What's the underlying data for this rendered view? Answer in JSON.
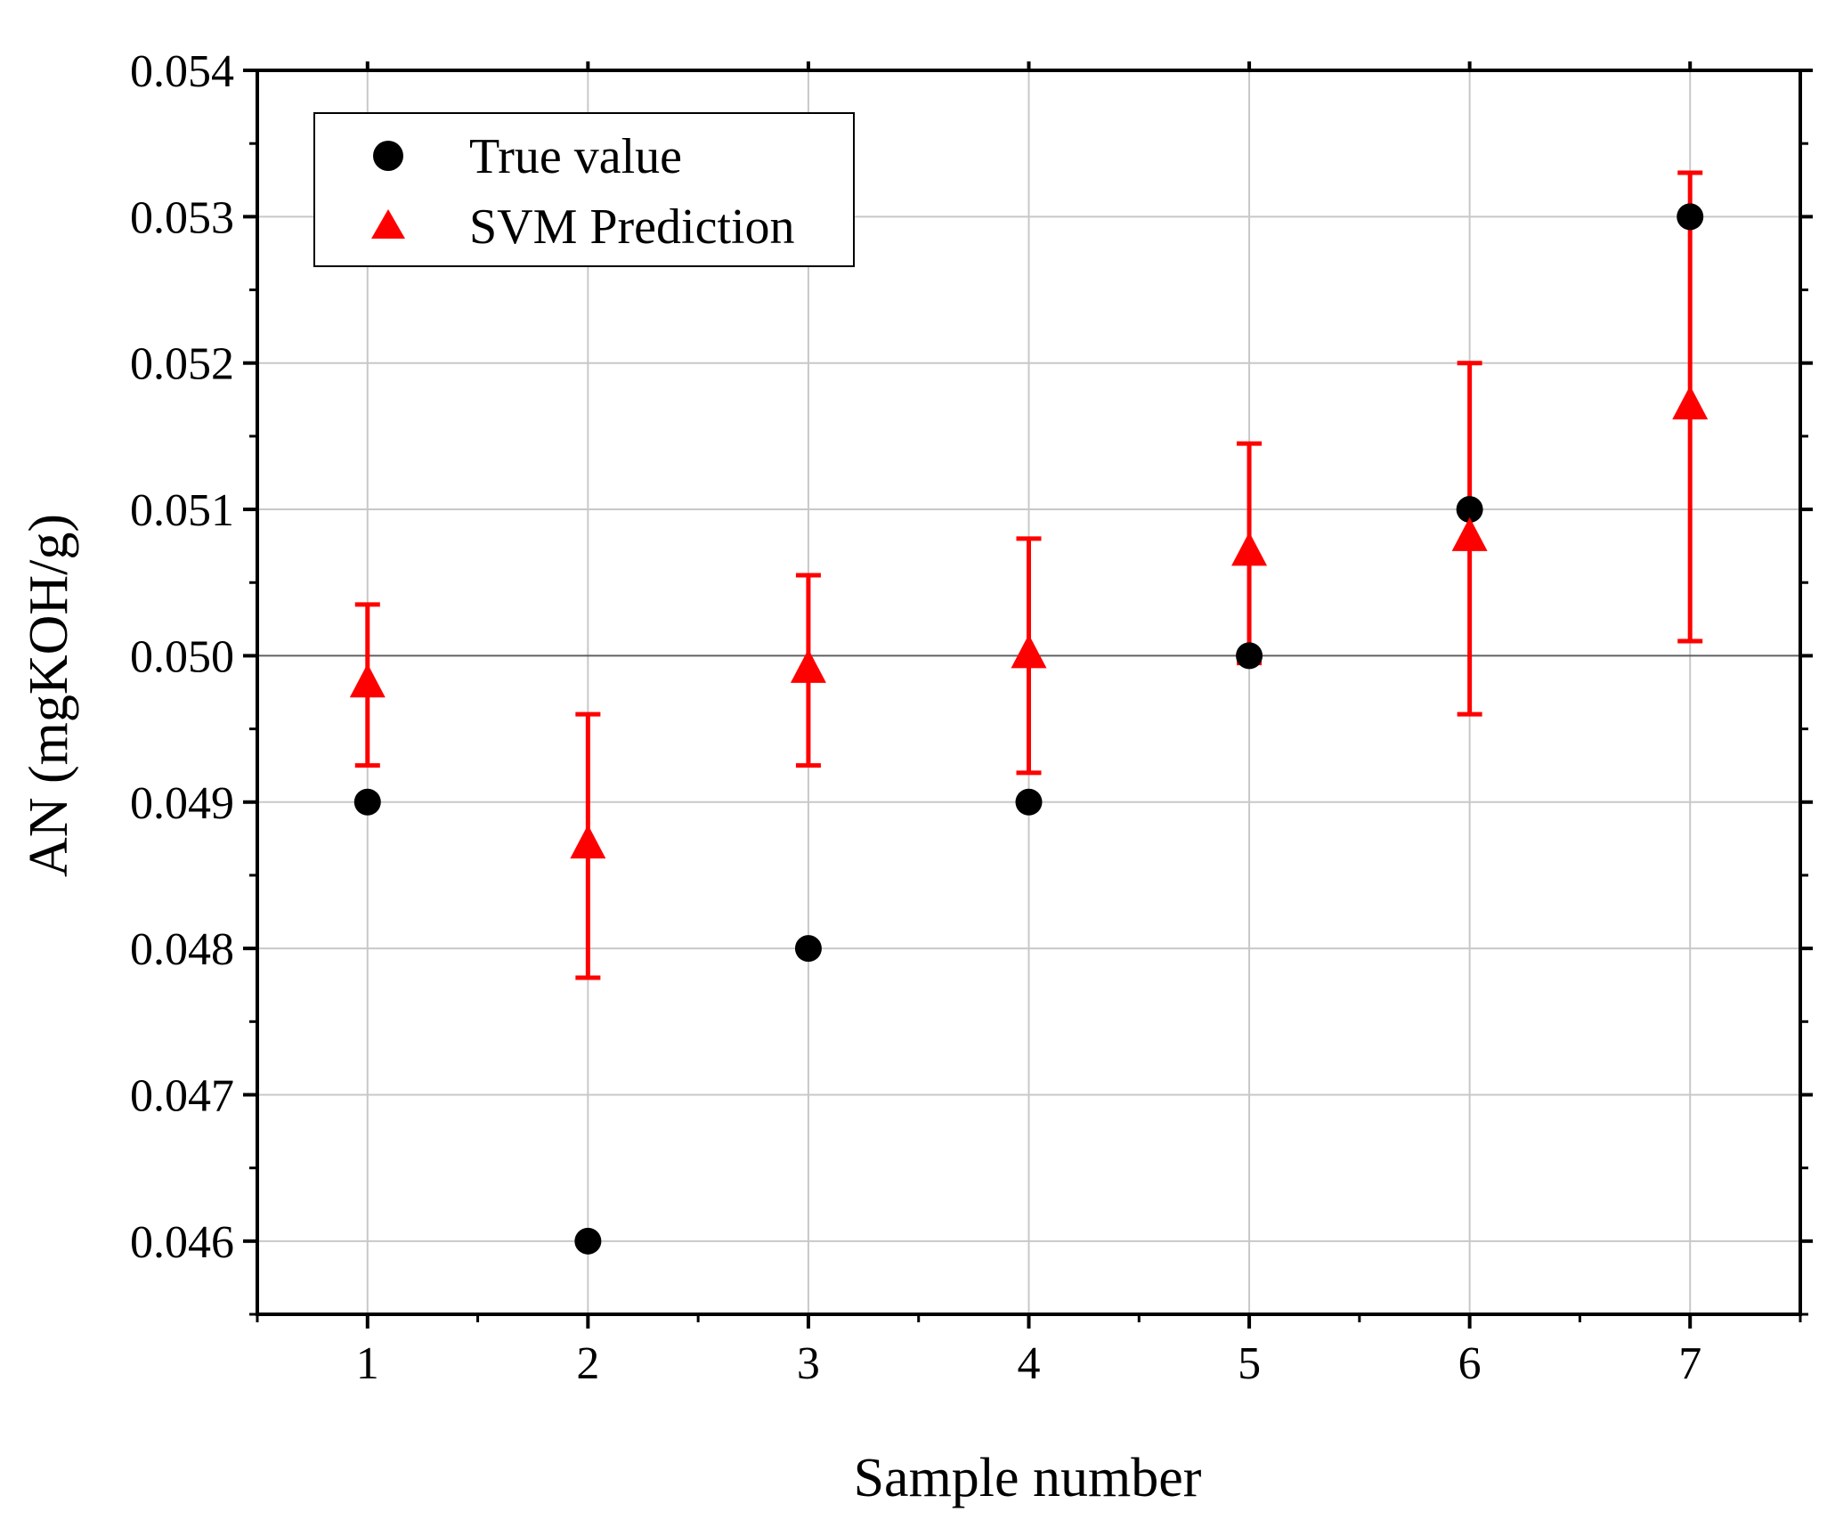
{
  "chart_data": {
    "type": "scatter",
    "title": "",
    "xlabel": "Sample number",
    "ylabel": "AN (mgKOH/g)",
    "xlim": [
      0.5,
      7.5
    ],
    "ylim": [
      0.0455,
      0.054
    ],
    "x_ticks": [
      1,
      2,
      3,
      4,
      5,
      6,
      7
    ],
    "x_tick_labels": [
      "1",
      "2",
      "3",
      "4",
      "5",
      "6",
      "7"
    ],
    "y_ticks": [
      0.046,
      0.047,
      0.048,
      0.049,
      0.05,
      0.051,
      0.052,
      0.053,
      0.054
    ],
    "y_tick_labels": [
      "0.046",
      "0.047",
      "0.048",
      "0.049",
      "0.050",
      "0.051",
      "0.052",
      "0.053",
      "0.054"
    ],
    "grid": true,
    "legend_position": "top-left",
    "series": [
      {
        "name": "True value",
        "marker": "circle",
        "color": "#000000",
        "x": [
          1,
          2,
          3,
          4,
          5,
          6,
          7
        ],
        "y": [
          0.049,
          0.046,
          0.048,
          0.049,
          0.05,
          0.051,
          0.053
        ]
      },
      {
        "name": "SVM Prediction",
        "marker": "triangle",
        "color": "#ff0000",
        "x": [
          1,
          2,
          3,
          4,
          5,
          6,
          7
        ],
        "y": [
          0.0498,
          0.0487,
          0.0499,
          0.05,
          0.0507,
          0.0508,
          0.0517
        ],
        "err_low": [
          0.04925,
          0.0478,
          0.04925,
          0.0492,
          0.04995,
          0.0496,
          0.0501
        ],
        "err_high": [
          0.05035,
          0.0496,
          0.05055,
          0.0508,
          0.05145,
          0.052,
          0.0533
        ]
      }
    ]
  }
}
